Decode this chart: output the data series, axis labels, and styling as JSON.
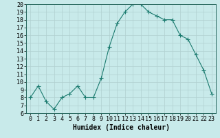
{
  "x": [
    0,
    1,
    2,
    3,
    4,
    5,
    6,
    7,
    8,
    9,
    10,
    11,
    12,
    13,
    14,
    15,
    16,
    17,
    18,
    19,
    20,
    21,
    22,
    23
  ],
  "y": [
    8,
    9.5,
    7.5,
    6.5,
    8,
    8.5,
    9.5,
    8,
    8,
    10.5,
    14.5,
    17.5,
    19,
    20,
    20,
    19,
    18.5,
    18,
    18,
    16,
    15.5,
    13.5,
    11.5,
    8.5
  ],
  "line_color": "#1a7a6e",
  "marker_color": "#1a7a6e",
  "bg_color": "#c8eaea",
  "grid_color": "#b0d0d0",
  "xlabel": "Humidex (Indice chaleur)",
  "ylim": [
    6,
    20
  ],
  "xlim_min": -0.5,
  "xlim_max": 23.5,
  "yticks": [
    6,
    7,
    8,
    9,
    10,
    11,
    12,
    13,
    14,
    15,
    16,
    17,
    18,
    19,
    20
  ],
  "xticks": [
    0,
    1,
    2,
    3,
    4,
    5,
    6,
    7,
    8,
    9,
    10,
    11,
    12,
    13,
    14,
    15,
    16,
    17,
    18,
    19,
    20,
    21,
    22,
    23
  ],
  "xlabel_fontsize": 7,
  "tick_fontsize": 6,
  "marker_size": 2,
  "line_width": 0.8
}
